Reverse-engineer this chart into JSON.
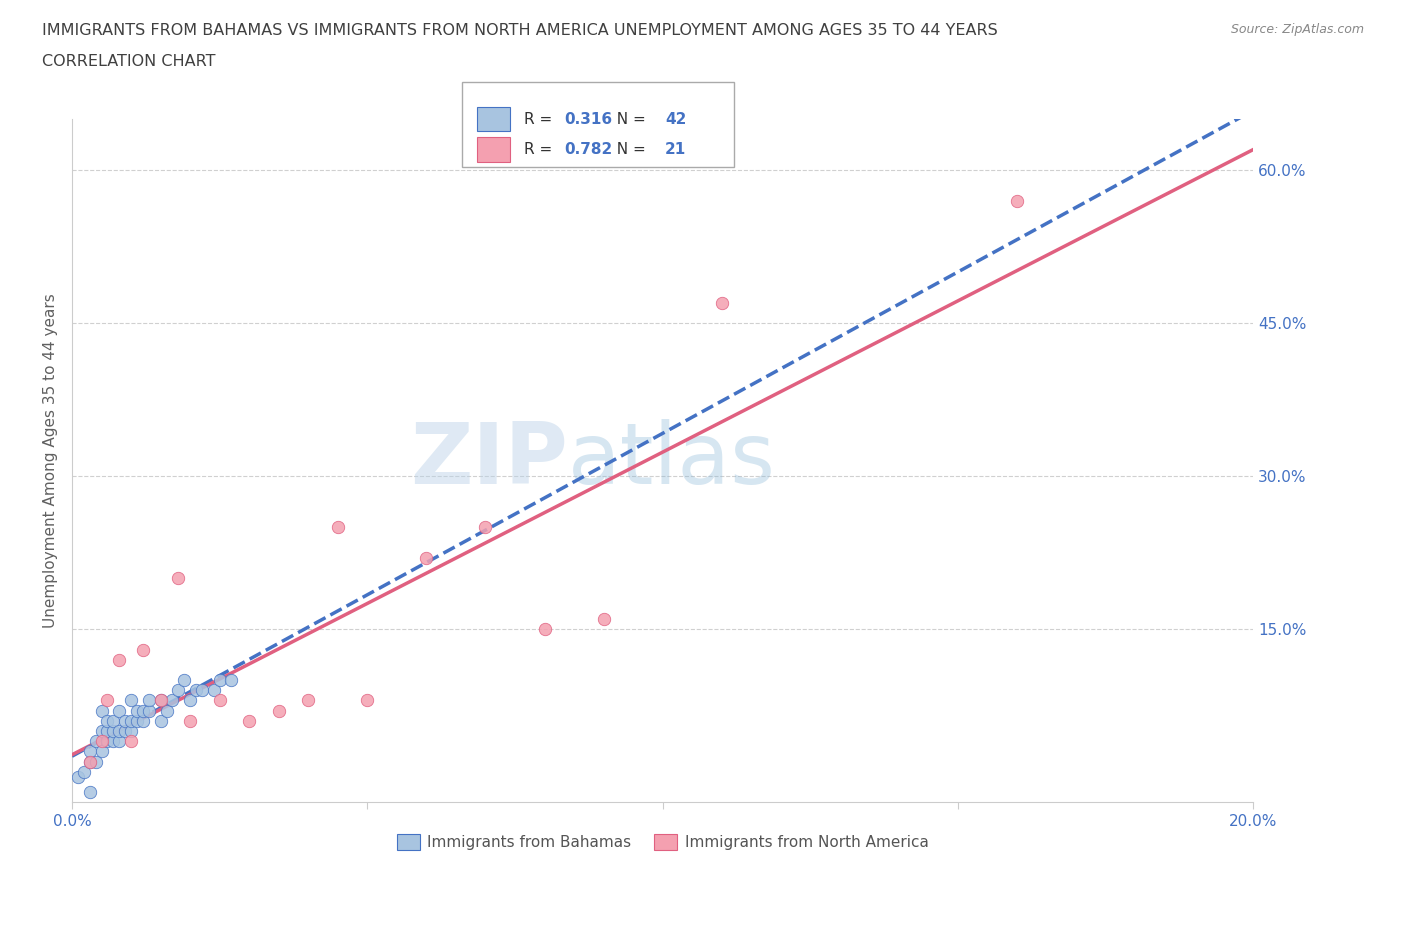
{
  "title_line1": "IMMIGRANTS FROM BAHAMAS VS IMMIGRANTS FROM NORTH AMERICA UNEMPLOYMENT AMONG AGES 35 TO 44 YEARS",
  "title_line2": "CORRELATION CHART",
  "source": "Source: ZipAtlas.com",
  "ylabel": "Unemployment Among Ages 35 to 44 years",
  "xlim": [
    0.0,
    0.2
  ],
  "ylim": [
    -0.02,
    0.65
  ],
  "xticks": [
    0.0,
    0.05,
    0.1,
    0.15,
    0.2
  ],
  "yticks_right": [
    0.15,
    0.3,
    0.45,
    0.6
  ],
  "ytick_right_labels": [
    "15.0%",
    "30.0%",
    "45.0%",
    "60.0%"
  ],
  "series1_label": "Immigrants from Bahamas",
  "series1_color": "#a8c4e0",
  "series1_R": "0.316",
  "series1_N": "42",
  "series1_x": [
    0.001,
    0.002,
    0.003,
    0.003,
    0.004,
    0.004,
    0.005,
    0.005,
    0.005,
    0.006,
    0.006,
    0.006,
    0.007,
    0.007,
    0.007,
    0.008,
    0.008,
    0.008,
    0.009,
    0.009,
    0.01,
    0.01,
    0.01,
    0.011,
    0.011,
    0.012,
    0.012,
    0.013,
    0.013,
    0.015,
    0.015,
    0.016,
    0.017,
    0.018,
    0.019,
    0.02,
    0.021,
    0.022,
    0.024,
    0.025,
    0.027,
    0.003
  ],
  "series1_y": [
    0.005,
    0.01,
    0.02,
    0.03,
    0.02,
    0.04,
    0.03,
    0.05,
    0.07,
    0.04,
    0.05,
    0.06,
    0.04,
    0.05,
    0.06,
    0.04,
    0.05,
    0.07,
    0.05,
    0.06,
    0.05,
    0.06,
    0.08,
    0.06,
    0.07,
    0.06,
    0.07,
    0.07,
    0.08,
    0.06,
    0.08,
    0.07,
    0.08,
    0.09,
    0.1,
    0.08,
    0.09,
    0.09,
    0.09,
    0.1,
    0.1,
    -0.01
  ],
  "series2_label": "Immigrants from North America",
  "series2_color": "#f4a0b0",
  "series2_R": "0.782",
  "series2_N": "21",
  "series2_x": [
    0.003,
    0.005,
    0.006,
    0.008,
    0.01,
    0.012,
    0.015,
    0.018,
    0.02,
    0.025,
    0.03,
    0.035,
    0.04,
    0.045,
    0.05,
    0.06,
    0.07,
    0.08,
    0.09,
    0.11,
    0.16
  ],
  "series2_y": [
    0.02,
    0.04,
    0.08,
    0.12,
    0.04,
    0.13,
    0.08,
    0.2,
    0.06,
    0.08,
    0.06,
    0.07,
    0.08,
    0.25,
    0.08,
    0.22,
    0.25,
    0.15,
    0.16,
    0.47,
    0.57
  ],
  "line1_color": "#4472c4",
  "line2_color": "#e06080",
  "watermark_zip": "ZIP",
  "watermark_atlas": "atlas",
  "background_color": "#ffffff",
  "grid_color": "#d0d0d0",
  "title_color": "#404040",
  "axis_color": "#4472c4"
}
